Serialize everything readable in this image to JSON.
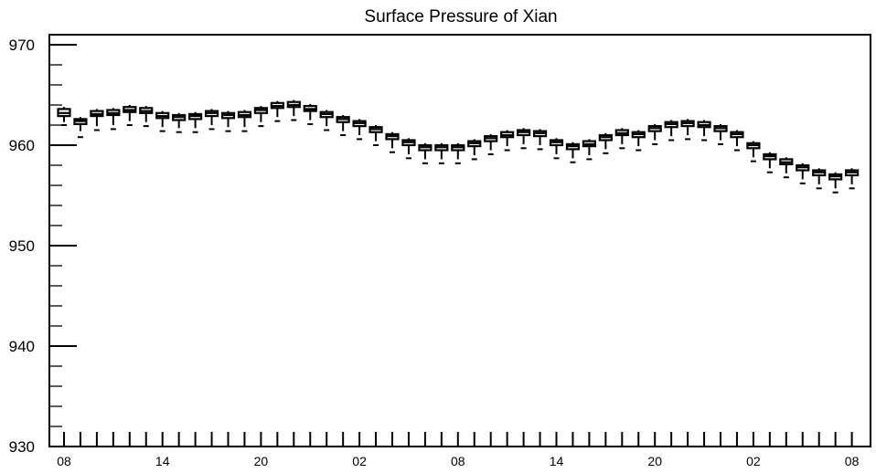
{
  "chart_data": {
    "type": "box",
    "title": "Surface Pressure of Xian",
    "xlabel": "",
    "ylabel": "",
    "ylim": [
      930,
      971
    ],
    "y_ticks": [
      930,
      940,
      950,
      960,
      970
    ],
    "y_tick_labels": [
      "930",
      "940",
      "950",
      "960",
      "970"
    ],
    "x_tick_labels": [
      "08",
      "14",
      "20",
      "02",
      "08",
      "14",
      "20",
      "02",
      "08"
    ],
    "x_tick_label_positions": [
      0,
      6,
      12,
      18,
      24,
      30,
      36,
      42,
      48
    ],
    "grid": false,
    "colors": {
      "stroke": "#000000",
      "background": "#ffffff"
    },
    "boxes": [
      {
        "x": 0,
        "q1": 962.9,
        "median": 963.2,
        "q3": 963.6,
        "whisker_low": 962.3,
        "whisker_high": 963.8,
        "min": 962.0
      },
      {
        "x": 1,
        "q1": 962.1,
        "median": 962.4,
        "q3": 962.6,
        "whisker_low": 961.4,
        "whisker_high": 962.8,
        "min": 960.8
      },
      {
        "x": 2,
        "q1": 962.9,
        "median": 963.1,
        "q3": 963.4,
        "whisker_low": 961.9,
        "whisker_high": 963.6,
        "min": 961.5
      },
      {
        "x": 3,
        "q1": 963.0,
        "median": 963.2,
        "q3": 963.5,
        "whisker_low": 962.0,
        "whisker_high": 963.7,
        "min": 961.6
      },
      {
        "x": 4,
        "q1": 963.3,
        "median": 963.5,
        "q3": 963.8,
        "whisker_low": 962.4,
        "whisker_high": 964.0,
        "min": 962.0
      },
      {
        "x": 5,
        "q1": 963.2,
        "median": 963.4,
        "q3": 963.7,
        "whisker_low": 962.3,
        "whisker_high": 963.9,
        "min": 961.9
      },
      {
        "x": 6,
        "q1": 962.7,
        "median": 962.9,
        "q3": 963.2,
        "whisker_low": 961.8,
        "whisker_high": 963.4,
        "min": 961.4
      },
      {
        "x": 7,
        "q1": 962.5,
        "median": 962.8,
        "q3": 963.0,
        "whisker_low": 961.7,
        "whisker_high": 963.2,
        "min": 961.3
      },
      {
        "x": 8,
        "q1": 962.6,
        "median": 962.9,
        "q3": 963.1,
        "whisker_low": 961.7,
        "whisker_high": 963.3,
        "min": 961.3
      },
      {
        "x": 9,
        "q1": 962.9,
        "median": 963.2,
        "q3": 963.4,
        "whisker_low": 962.0,
        "whisker_high": 963.6,
        "min": 961.6
      },
      {
        "x": 10,
        "q1": 962.7,
        "median": 963.0,
        "q3": 963.2,
        "whisker_low": 961.8,
        "whisker_high": 963.4,
        "min": 961.4
      },
      {
        "x": 11,
        "q1": 962.8,
        "median": 963.0,
        "q3": 963.3,
        "whisker_low": 961.8,
        "whisker_high": 963.5,
        "min": 961.4
      },
      {
        "x": 12,
        "q1": 963.2,
        "median": 963.5,
        "q3": 963.7,
        "whisker_low": 962.3,
        "whisker_high": 963.9,
        "min": 961.9
      },
      {
        "x": 13,
        "q1": 963.7,
        "median": 963.9,
        "q3": 964.2,
        "whisker_low": 962.8,
        "whisker_high": 964.4,
        "min": 962.4
      },
      {
        "x": 14,
        "q1": 963.8,
        "median": 964.0,
        "q3": 964.3,
        "whisker_low": 962.9,
        "whisker_high": 964.5,
        "min": 962.5
      },
      {
        "x": 15,
        "q1": 963.4,
        "median": 963.6,
        "q3": 963.9,
        "whisker_low": 962.5,
        "whisker_high": 964.1,
        "min": 962.1
      },
      {
        "x": 16,
        "q1": 962.8,
        "median": 963.1,
        "q3": 963.3,
        "whisker_low": 961.9,
        "whisker_high": 963.5,
        "min": 961.5
      },
      {
        "x": 17,
        "q1": 962.3,
        "median": 962.6,
        "q3": 962.8,
        "whisker_low": 961.4,
        "whisker_high": 963.0,
        "min": 961.0
      },
      {
        "x": 18,
        "q1": 961.9,
        "median": 962.2,
        "q3": 962.4,
        "whisker_low": 961.0,
        "whisker_high": 962.6,
        "min": 960.6
      },
      {
        "x": 19,
        "q1": 961.3,
        "median": 961.6,
        "q3": 961.8,
        "whisker_low": 960.4,
        "whisker_high": 962.0,
        "min": 960.0
      },
      {
        "x": 20,
        "q1": 960.6,
        "median": 960.9,
        "q3": 961.1,
        "whisker_low": 959.7,
        "whisker_high": 961.3,
        "min": 959.3
      },
      {
        "x": 21,
        "q1": 960.0,
        "median": 960.3,
        "q3": 960.5,
        "whisker_low": 959.1,
        "whisker_high": 960.7,
        "min": 958.7
      },
      {
        "x": 22,
        "q1": 959.5,
        "median": 959.8,
        "q3": 960.0,
        "whisker_low": 958.6,
        "whisker_high": 960.2,
        "min": 958.2
      },
      {
        "x": 23,
        "q1": 959.5,
        "median": 959.8,
        "q3": 960.0,
        "whisker_low": 958.6,
        "whisker_high": 960.2,
        "min": 958.2
      },
      {
        "x": 24,
        "q1": 959.5,
        "median": 959.8,
        "q3": 960.0,
        "whisker_low": 958.6,
        "whisker_high": 960.2,
        "min": 958.2
      },
      {
        "x": 25,
        "q1": 959.9,
        "median": 960.2,
        "q3": 960.4,
        "whisker_low": 959.0,
        "whisker_high": 960.6,
        "min": 958.6
      },
      {
        "x": 26,
        "q1": 960.4,
        "median": 960.7,
        "q3": 960.9,
        "whisker_low": 959.5,
        "whisker_high": 961.1,
        "min": 959.1
      },
      {
        "x": 27,
        "q1": 960.8,
        "median": 961.0,
        "q3": 961.3,
        "whisker_low": 959.9,
        "whisker_high": 961.5,
        "min": 959.5
      },
      {
        "x": 28,
        "q1": 961.0,
        "median": 961.3,
        "q3": 961.5,
        "whisker_low": 960.1,
        "whisker_high": 961.7,
        "min": 959.7
      },
      {
        "x": 29,
        "q1": 960.9,
        "median": 961.2,
        "q3": 961.4,
        "whisker_low": 960.0,
        "whisker_high": 961.6,
        "min": 959.6
      },
      {
        "x": 30,
        "q1": 960.0,
        "median": 960.3,
        "q3": 960.5,
        "whisker_low": 959.1,
        "whisker_high": 960.7,
        "min": 958.7
      },
      {
        "x": 31,
        "q1": 959.6,
        "median": 959.9,
        "q3": 960.1,
        "whisker_low": 958.7,
        "whisker_high": 960.3,
        "min": 958.3
      },
      {
        "x": 32,
        "q1": 959.9,
        "median": 960.1,
        "q3": 960.4,
        "whisker_low": 959.0,
        "whisker_high": 960.6,
        "min": 958.6
      },
      {
        "x": 33,
        "q1": 960.5,
        "median": 960.8,
        "q3": 961.0,
        "whisker_low": 959.6,
        "whisker_high": 961.2,
        "min": 959.2
      },
      {
        "x": 34,
        "q1": 961.0,
        "median": 961.2,
        "q3": 961.5,
        "whisker_low": 960.1,
        "whisker_high": 961.7,
        "min": 959.7
      },
      {
        "x": 35,
        "q1": 960.8,
        "median": 961.1,
        "q3": 961.3,
        "whisker_low": 959.9,
        "whisker_high": 961.5,
        "min": 959.5
      },
      {
        "x": 36,
        "q1": 961.4,
        "median": 961.7,
        "q3": 961.9,
        "whisker_low": 960.5,
        "whisker_high": 962.1,
        "min": 960.1
      },
      {
        "x": 37,
        "q1": 961.8,
        "median": 962.1,
        "q3": 962.3,
        "whisker_low": 960.9,
        "whisker_high": 962.5,
        "min": 960.5
      },
      {
        "x": 38,
        "q1": 961.9,
        "median": 962.2,
        "q3": 962.4,
        "whisker_low": 961.0,
        "whisker_high": 962.6,
        "min": 960.6
      },
      {
        "x": 39,
        "q1": 961.8,
        "median": 962.0,
        "q3": 962.3,
        "whisker_low": 960.9,
        "whisker_high": 962.5,
        "min": 960.5
      },
      {
        "x": 40,
        "q1": 961.4,
        "median": 961.7,
        "q3": 961.9,
        "whisker_low": 960.5,
        "whisker_high": 962.1,
        "min": 960.1
      },
      {
        "x": 41,
        "q1": 960.8,
        "median": 961.1,
        "q3": 961.3,
        "whisker_low": 959.9,
        "whisker_high": 961.5,
        "min": 959.5
      },
      {
        "x": 42,
        "q1": 959.7,
        "median": 960.0,
        "q3": 960.2,
        "whisker_low": 958.8,
        "whisker_high": 960.4,
        "min": 958.4
      },
      {
        "x": 43,
        "q1": 958.6,
        "median": 958.9,
        "q3": 959.1,
        "whisker_low": 957.7,
        "whisker_high": 959.3,
        "min": 957.3
      },
      {
        "x": 44,
        "q1": 958.1,
        "median": 958.3,
        "q3": 958.6,
        "whisker_low": 957.2,
        "whisker_high": 958.8,
        "min": 956.8
      },
      {
        "x": 45,
        "q1": 957.5,
        "median": 957.8,
        "q3": 958.0,
        "whisker_low": 956.6,
        "whisker_high": 958.2,
        "min": 956.2
      },
      {
        "x": 46,
        "q1": 957.0,
        "median": 957.3,
        "q3": 957.5,
        "whisker_low": 956.1,
        "whisker_high": 957.7,
        "min": 955.7
      },
      {
        "x": 47,
        "q1": 956.6,
        "median": 956.9,
        "q3": 957.1,
        "whisker_low": 955.7,
        "whisker_high": 957.3,
        "min": 955.3
      },
      {
        "x": 48,
        "q1": 957.0,
        "median": 957.3,
        "q3": 957.5,
        "whisker_low": 956.1,
        "whisker_high": 957.7,
        "min": 955.7
      }
    ]
  }
}
